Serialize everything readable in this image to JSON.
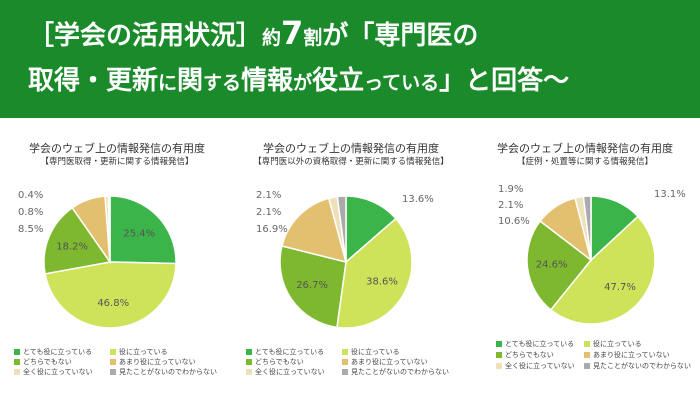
{
  "header": {
    "line1_a": "［学会の活用状況］",
    "line1_b": "約",
    "line1_c": "7",
    "line1_d": "割",
    "line1_e": "が「専門医の",
    "line2_a": "取得・更新",
    "line2_b": "に",
    "line2_c": "関",
    "line2_d": "する",
    "line2_e": "情報",
    "line2_f": "が",
    "line2_g": "役立",
    "line2_h": "っている",
    "line2_i": "」と回答〜"
  },
  "legend_labels": [
    "とても役に立っている",
    "役に立っている",
    "どちらでもない",
    "あまり役に立っていない",
    "全く役に立っていない",
    "見たことがないのでわからない"
  ],
  "colors": [
    "#3bb54a",
    "#cfe35a",
    "#7db82f",
    "#e3c070",
    "#efe0bc",
    "#aaaaaa"
  ],
  "chart_data": [
    {
      "type": "pie",
      "title": "学会のウェブ上の情報発信の有用度",
      "subtitle": "【専門医取得・更新に関する情報発信】",
      "categories": [
        "とても役に立っている",
        "役に立っている",
        "どちらでもない",
        "あまり役に立っていない",
        "全く役に立っていない",
        "見たことがないのでわからない"
      ],
      "values": [
        25.4,
        46.8,
        18.2,
        8.5,
        0.8,
        0.4
      ],
      "labels": [
        "25.4%",
        "46.8%",
        "18.2%",
        "8.5%",
        "0.8%",
        "0.4%"
      ]
    },
    {
      "type": "pie",
      "title": "学会のウェブ上の情報発信の有用度",
      "subtitle": "【専門医以外の資格取得・更新に関する情報発信】",
      "categories": [
        "とても役に立っている",
        "役に立っている",
        "どちらでもない",
        "あまり役に立っていない",
        "全く役に立っていない",
        "見たことがないのでわからない"
      ],
      "values": [
        13.6,
        38.6,
        26.7,
        16.9,
        2.1,
        2.1
      ],
      "labels": [
        "13.6%",
        "38.6%",
        "26.7%",
        "16.9%",
        "2.1%",
        "2.1%"
      ]
    },
    {
      "type": "pie",
      "title": "学会のウェブ上の情報発信の有用度",
      "subtitle": "【症例・処置等に関する情報発信】",
      "categories": [
        "とても役に立っている",
        "役に立っている",
        "どちらでもない",
        "あまり役に立っていない",
        "全く役に立っていない",
        "見たことがないのでわからない"
      ],
      "values": [
        13.1,
        47.7,
        24.6,
        10.6,
        2.1,
        1.9
      ],
      "labels": [
        "13.1%",
        "47.7%",
        "24.6%",
        "10.6%",
        "2.1%",
        "1.9%"
      ]
    }
  ]
}
